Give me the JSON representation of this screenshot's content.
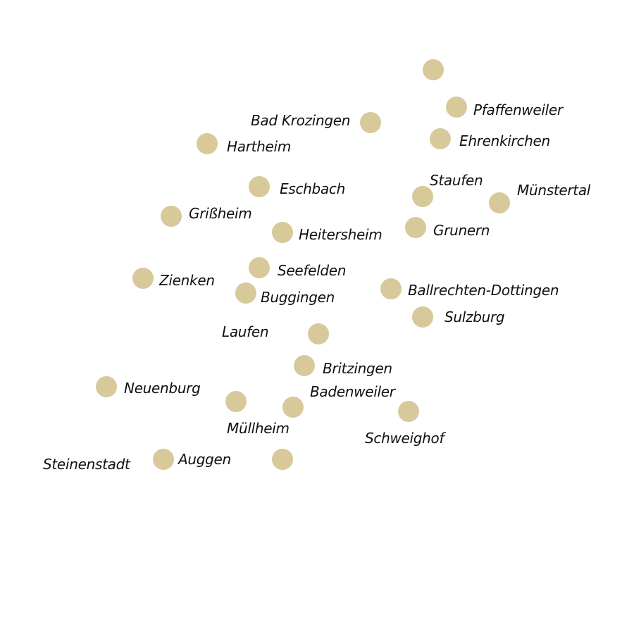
{
  "colors": {
    "background": "#ffffff",
    "dot": "#d8c99b",
    "text": "#111111"
  },
  "places": [
    {
      "id": "unlabeled-north",
      "name": ""
    },
    {
      "id": "pfaffenweiler",
      "name": "Pfaffenweiler"
    },
    {
      "id": "bad-krozingen",
      "name": "Bad Krozingen"
    },
    {
      "id": "ehrenkirchen",
      "name": "Ehrenkirchen"
    },
    {
      "id": "hartheim",
      "name": "Hartheim"
    },
    {
      "id": "eschbach",
      "name": "Eschbach"
    },
    {
      "id": "staufen",
      "name": "Staufen"
    },
    {
      "id": "muenstertal",
      "name": "Münstertal"
    },
    {
      "id": "grissheim",
      "name": "Grißheim"
    },
    {
      "id": "heitersheim",
      "name": "Heitersheim"
    },
    {
      "id": "grunern",
      "name": "Grunern"
    },
    {
      "id": "seefelden",
      "name": "Seefelden"
    },
    {
      "id": "zienken",
      "name": "Zienken"
    },
    {
      "id": "buggingen",
      "name": "Buggingen"
    },
    {
      "id": "ballrechten-dottingen",
      "name": "Ballrechten-Dottingen"
    },
    {
      "id": "sulzburg",
      "name": "Sulzburg"
    },
    {
      "id": "laufen",
      "name": "Laufen"
    },
    {
      "id": "britzingen",
      "name": "Britzingen"
    },
    {
      "id": "neuenburg",
      "name": "Neuenburg"
    },
    {
      "id": "badenweiler",
      "name": "Badenweiler"
    },
    {
      "id": "muellheim",
      "name": "Müllheim"
    },
    {
      "id": "schweighof",
      "name": "Schweighof"
    },
    {
      "id": "steinenstadt",
      "name": "Steinenstadt"
    },
    {
      "id": "auggen",
      "name": "Auggen"
    },
    {
      "id": "unlabeled-south",
      "name": ""
    }
  ]
}
